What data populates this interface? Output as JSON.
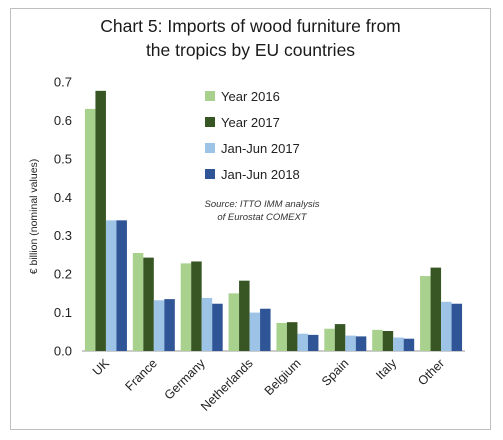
{
  "chart_data": {
    "type": "bar",
    "title_line1": "Chart 5: Imports of wood furniture from",
    "title_line2": "the tropics by EU countries",
    "ylabel": "€ billion (nominal values)",
    "xlabel": "",
    "ylim": [
      0,
      0.7
    ],
    "yticks": [
      "0.0",
      "0.1",
      "0.2",
      "0.3",
      "0.4",
      "0.5",
      "0.6",
      "0.7"
    ],
    "grid": false,
    "legend_position": "top-center",
    "categories": [
      "UK",
      "France",
      "Germany",
      "Netherlands",
      "Belgium",
      "Spain",
      "Italy",
      "Other"
    ],
    "series": [
      {
        "name": "Year 2016",
        "color": "#a9d18e",
        "values": [
          0.63,
          0.255,
          0.228,
          0.15,
          0.073,
          0.058,
          0.055,
          0.195
        ]
      },
      {
        "name": "Year 2017",
        "color": "#375623",
        "values": [
          0.677,
          0.243,
          0.233,
          0.183,
          0.075,
          0.07,
          0.052,
          0.217
        ]
      },
      {
        "name": "Jan-Jun 2017",
        "color": "#9dc3e6",
        "values": [
          0.34,
          0.132,
          0.138,
          0.1,
          0.045,
          0.04,
          0.035,
          0.128
        ]
      },
      {
        "name": "Jan-Jun 2018",
        "color": "#2f5597",
        "values": [
          0.34,
          0.135,
          0.123,
          0.11,
          0.042,
          0.038,
          0.032,
          0.123
        ]
      }
    ],
    "annotation_line1": "Source: ITTO IMM analysis",
    "annotation_line2": "of Eurostat COMEXT"
  }
}
